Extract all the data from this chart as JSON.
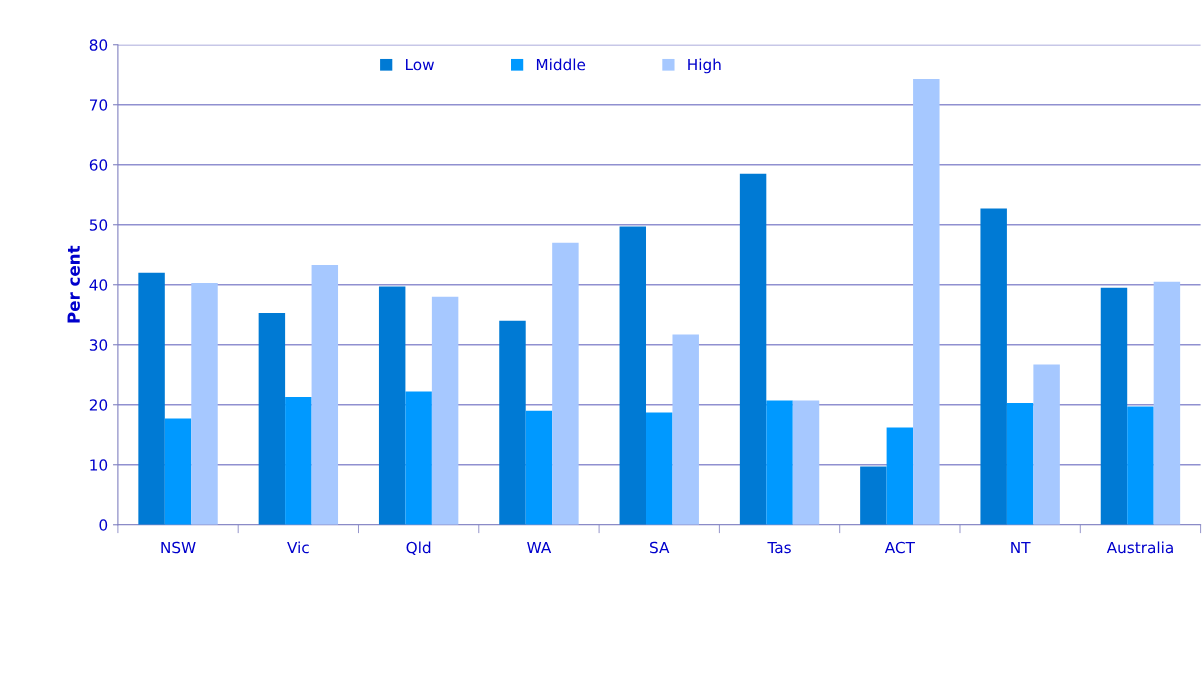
{
  "chart_data": {
    "type": "bar",
    "ylabel": "Per cent",
    "categories": [
      "NSW",
      "Vic",
      "Qld",
      "WA",
      "SA",
      "Tas",
      "ACT",
      "NT",
      "Australia"
    ],
    "series": [
      {
        "name": "Low",
        "color": "#007ad4",
        "values": [
          42.0,
          35.3,
          39.7,
          34.0,
          49.7,
          58.5,
          9.7,
          52.7,
          39.5
        ]
      },
      {
        "name": "Middle",
        "color": "#0099ff",
        "values": [
          17.7,
          21.3,
          22.2,
          19.0,
          18.7,
          20.7,
          16.2,
          20.3,
          19.7
        ]
      },
      {
        "name": "High",
        "color": "#a6c8ff",
        "values": [
          40.3,
          43.3,
          38.0,
          47.0,
          31.7,
          20.7,
          74.3,
          26.7,
          40.5
        ]
      }
    ],
    "ylim": [
      0,
      80
    ],
    "yticks": [
      0,
      10,
      20,
      30,
      40,
      50,
      60,
      70,
      80
    ],
    "grid": "y",
    "legend": "top"
  }
}
